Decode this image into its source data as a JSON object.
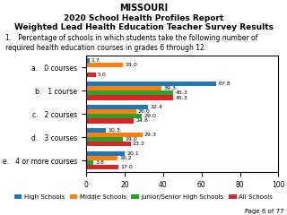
{
  "chart_data": {
    "type": "bar",
    "orientation": "horizontal",
    "title": "MISSOURI",
    "subtitle": [
      "2020 School Health Profiles Report",
      "Weighted Lead Health Education Teacher Survey Results"
    ],
    "annotations": [
      "1.   Percentage of schools in which students take the following number of required health education courses in grades 6 through 12.",
      "Page 6 of 77"
    ],
    "categories": [
      "a.   0 courses",
      "b.   1 course",
      "c.   2 courses",
      "d.   3 courses",
      "e.   4 or more courses"
    ],
    "series": [
      {
        "name": "High Schools",
        "values": [
          1.7,
          67.8,
          32.4,
          10.3,
          20.1
        ]
      },
      {
        "name": "Middle Schools",
        "values": [
          19.0,
          39.3,
          26.0,
          29.3,
          16.2
        ]
      },
      {
        "name": "Junior/Senior High Schools",
        "values": [
          0.0,
          45.3,
          29.0,
          19.0,
          3.8
        ],
        "value_labels": [
          null,
          "45.3",
          "29.0",
          "19.0",
          "3.8"
        ]
      },
      {
        "name": "All Schools",
        "values": [
          5.0,
          45.3,
          24.8,
          23.2,
          17.0
        ]
      }
    ],
    "xlim": [
      0,
      100
    ],
    "xticks": [
      0,
      20,
      40,
      60,
      80,
      100
    ],
    "data_labels": true,
    "grid": false,
    "legend": "lower center"
  }
}
